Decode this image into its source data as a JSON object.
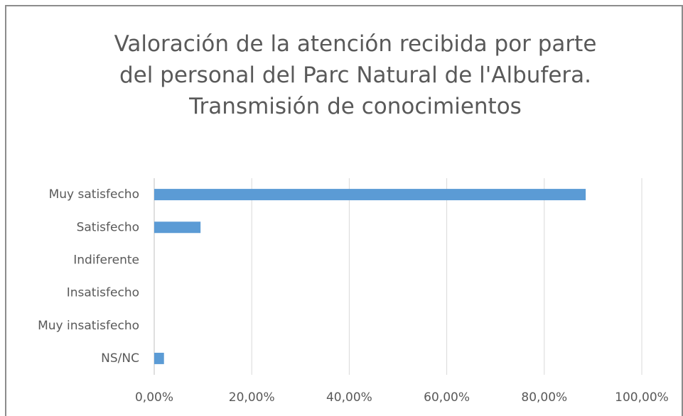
{
  "chart_data": {
    "type": "barh",
    "title": "Valoración de la atención recibida por parte del personal del Parc Natural de l'Albufera. Transmisión de conocimientos",
    "categories": [
      "Muy satisfecho",
      "Satisfecho",
      "Indiferente",
      "Insatisfecho",
      "Muy insatisfecho",
      "NS/NC"
    ],
    "values": [
      88.5,
      9.5,
      0,
      0,
      0,
      2.0
    ],
    "color": "#5b9bd5",
    "xlim": [
      0,
      100
    ],
    "xticks": [
      {
        "value": 0,
        "label": "0,00%"
      },
      {
        "value": 20,
        "label": "20,00%"
      },
      {
        "value": 40,
        "label": "40,00%"
      },
      {
        "value": 60,
        "label": "60,00%"
      },
      {
        "value": 80,
        "label": "80,00%"
      },
      {
        "value": 100,
        "label": "100,00%"
      }
    ],
    "grid": true
  }
}
